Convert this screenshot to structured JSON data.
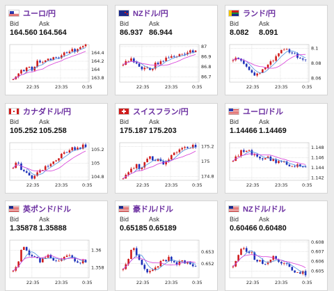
{
  "colors": {
    "up": "#d01c1c",
    "down": "#1c2fb8",
    "ma_short": "#4a8fe0",
    "ma_long": "#d63ad8",
    "title": "#6b2fa0"
  },
  "labels": {
    "bid": "Bid",
    "ask": "Ask"
  },
  "cards": [
    {
      "flag": "eu-flag",
      "name": "ユーロ/円",
      "bid": "164.560",
      "ask": "164.564",
      "chart_data": {
        "type": "candlestick",
        "y_ticks": [
          "164.4",
          "164.2",
          "164",
          "163.8"
        ],
        "x_ticks": [
          "22:35",
          "23:35",
          "0:35"
        ],
        "trend": [
          163.75,
          163.9,
          163.95,
          164.05,
          164.0,
          164.15,
          164.2,
          164.2,
          164.25,
          164.3,
          164.3,
          164.35,
          164.4,
          164.45,
          164.5,
          164.55,
          164.56
        ],
        "ylim": [
          163.7,
          164.6
        ]
      }
    },
    {
      "flag": "nz-flag",
      "name": "NZドル/円",
      "bid": "86.937",
      "ask": "86.944",
      "chart_data": {
        "type": "candlestick",
        "y_ticks": [
          "87",
          "86.9",
          "86.8",
          "86.7"
        ],
        "x_ticks": [
          "22:35",
          "23:35",
          "0:35"
        ],
        "trend": [
          86.82,
          86.85,
          86.88,
          86.84,
          86.78,
          86.8,
          86.76,
          86.82,
          86.85,
          86.88,
          86.9,
          86.92,
          86.9,
          86.93,
          86.95,
          86.94,
          86.94
        ],
        "ylim": [
          86.65,
          87.02
        ]
      }
    },
    {
      "flag": "za-flag",
      "name": "ランド/円",
      "bid": "8.082",
      "ask": "8.091",
      "chart_data": {
        "type": "candlestick",
        "y_ticks": [
          "8.1",
          "8.08",
          "8.06"
        ],
        "x_ticks": [
          "22:35",
          "23:35",
          "0:35"
        ],
        "trend": [
          8.085,
          8.09,
          8.08,
          8.075,
          8.07,
          8.065,
          8.07,
          8.075,
          8.08,
          8.085,
          8.095,
          8.1,
          8.098,
          8.095,
          8.09,
          8.088,
          8.085
        ],
        "ylim": [
          8.055,
          8.105
        ]
      }
    },
    {
      "flag": "ca-flag",
      "name": "カナダドル/円",
      "bid": "105.252",
      "ask": "105.258",
      "chart_data": {
        "type": "candlestick",
        "y_ticks": [
          "105.2",
          "105",
          "104.8"
        ],
        "x_ticks": [
          "22:35",
          "23:35",
          "0:35"
        ],
        "trend": [
          104.95,
          105.0,
          104.9,
          104.85,
          104.8,
          104.82,
          104.88,
          104.95,
          105.0,
          105.05,
          105.1,
          105.12,
          105.15,
          105.2,
          105.22,
          105.25,
          105.25
        ],
        "ylim": [
          104.75,
          105.3
        ]
      }
    },
    {
      "flag": "ch-flag",
      "name": "スイスフラン/円",
      "bid": "175.187",
      "ask": "175.203",
      "chart_data": {
        "type": "candlestick",
        "y_ticks": [
          "175.2",
          "175",
          "174.8"
        ],
        "x_ticks": [
          "22:35",
          "23:35",
          "0:35"
        ],
        "trend": [
          174.8,
          174.85,
          174.9,
          174.95,
          174.9,
          175.0,
          175.05,
          175.0,
          175.05,
          174.95,
          175.05,
          175.1,
          175.12,
          175.15,
          175.18,
          175.2,
          175.19
        ],
        "ylim": [
          174.75,
          175.25
        ]
      }
    },
    {
      "flag": "eu-us-flag",
      "name": "ユーロ/ドル",
      "bid": "1.14466",
      "ask": "1.14469",
      "chart_data": {
        "type": "candlestick",
        "y_ticks": [
          "1.148",
          "1.146",
          "1.144",
          "1.142"
        ],
        "x_ticks": [
          "22:35",
          "23:35",
          "0:35"
        ],
        "trend": [
          1.145,
          1.1465,
          1.1475,
          1.1478,
          1.147,
          1.1465,
          1.1462,
          1.146,
          1.1458,
          1.1455,
          1.1452,
          1.145,
          1.1448,
          1.1447,
          1.1446,
          1.1445,
          1.1446
        ],
        "ylim": [
          1.1415,
          1.149
        ]
      }
    },
    {
      "flag": "gb-us-flag",
      "name": "英ポンド/ドル",
      "bid": "1.35878",
      "ask": "1.35888",
      "chart_data": {
        "type": "candlestick",
        "y_ticks": [
          "1.36",
          "1.358"
        ],
        "x_ticks": [
          "22:35",
          "23:35",
          "0:35"
        ],
        "trend": [
          1.3575,
          1.3585,
          1.3605,
          1.3598,
          1.3592,
          1.359,
          1.3588,
          1.3592,
          1.3595,
          1.359,
          1.3588,
          1.3592,
          1.3595,
          1.359,
          1.3588,
          1.3586,
          1.3588
        ],
        "ylim": [
          1.3568,
          1.3612
        ]
      }
    },
    {
      "flag": "au-us-flag",
      "name": "豪ドル/ドル",
      "bid": "0.65185",
      "ask": "0.65189",
      "chart_data": {
        "type": "candlestick",
        "y_ticks": [
          "0.653",
          "0.652"
        ],
        "x_ticks": [
          "22:35",
          "23:35",
          "0:35"
        ],
        "trend": [
          0.6515,
          0.652,
          0.6535,
          0.6528,
          0.652,
          0.6515,
          0.6512,
          0.6518,
          0.652,
          0.6522,
          0.6525,
          0.6522,
          0.652,
          0.6521,
          0.652,
          0.6519,
          0.6519
        ],
        "ylim": [
          0.6508,
          0.654
        ]
      }
    },
    {
      "flag": "nz-us-flag",
      "name": "NZドル/ドル",
      "bid": "0.60466",
      "ask": "0.60480",
      "chart_data": {
        "type": "candlestick",
        "y_ticks": [
          "0.608",
          "0.607",
          "0.606",
          "0.605"
        ],
        "x_ticks": [
          "22:35",
          "23:35",
          "0:35"
        ],
        "trend": [
          0.6055,
          0.6065,
          0.6075,
          0.6072,
          0.6068,
          0.6062,
          0.606,
          0.6058,
          0.6062,
          0.6065,
          0.6062,
          0.6058,
          0.6055,
          0.6052,
          0.605,
          0.6048,
          0.6047
        ],
        "ylim": [
          0.6043,
          0.6082
        ]
      }
    }
  ]
}
